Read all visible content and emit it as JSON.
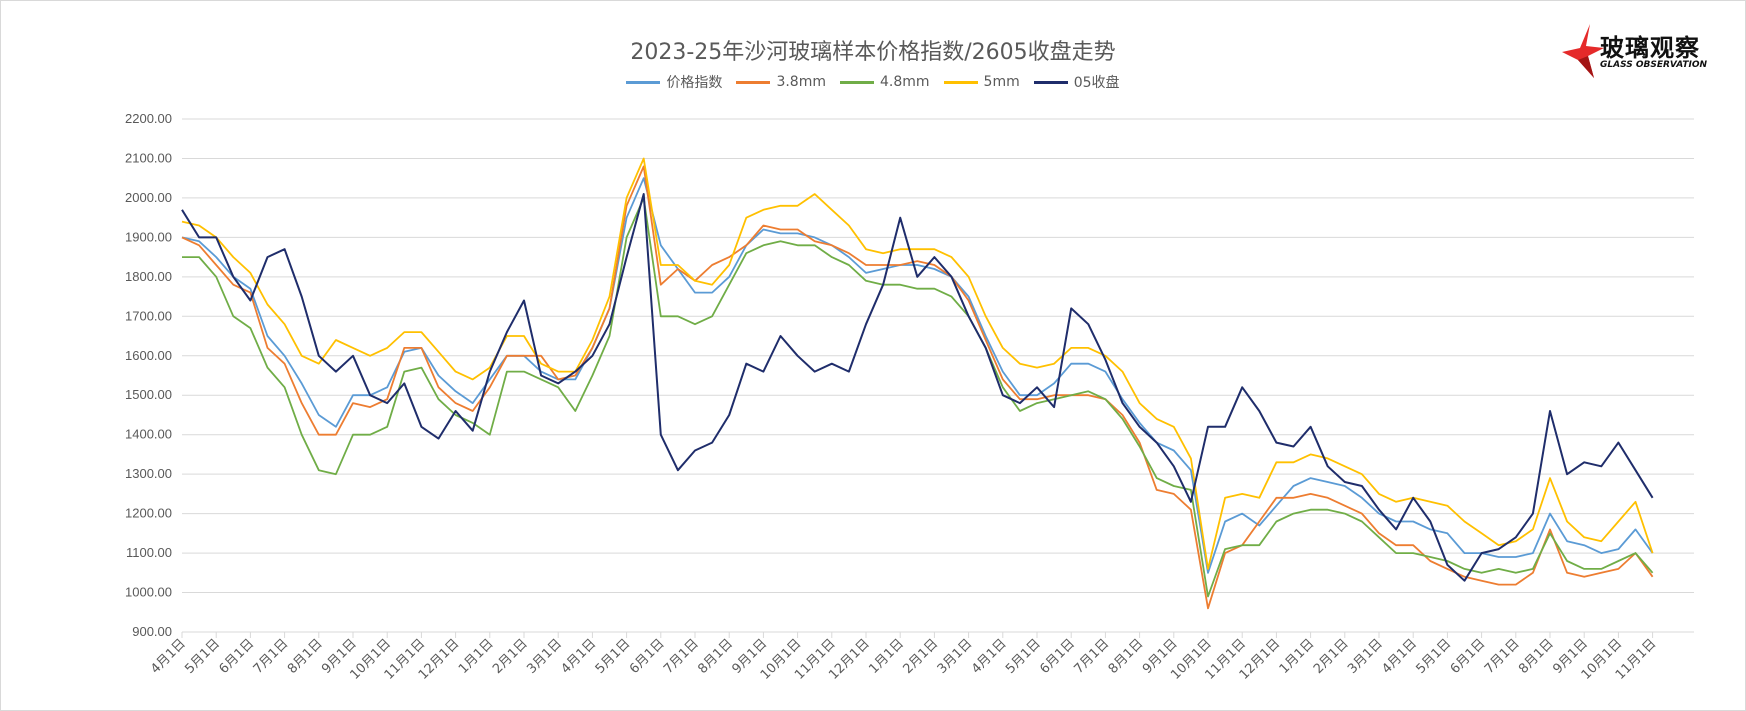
{
  "chart_data": {
    "type": "line",
    "title": "2023-25年沙河玻璃样本价格指数/2605收盘走势",
    "xlabel": "",
    "ylabel": "",
    "ylim": [
      900,
      2200
    ],
    "yticks": [
      "2200.00",
      "2100.00",
      "2000.00",
      "1900.00",
      "1800.00",
      "1700.00",
      "1600.00",
      "1500.00",
      "1400.00",
      "1300.00",
      "1200.00",
      "1100.00",
      "1000.00",
      "900.00"
    ],
    "xtick_labels": [
      "4月1日",
      "5月1日",
      "6月1日",
      "7月1日",
      "8月1日",
      "9月1日",
      "10月1日",
      "11月1日",
      "12月1日",
      "1月1日",
      "2月1日",
      "3月1日",
      "4月1日",
      "5月1日",
      "6月1日",
      "7月1日",
      "8月1日",
      "9月1日",
      "10月1日",
      "11月1日",
      "12月1日",
      "1月1日",
      "2月1日",
      "3月1日",
      "4月1日",
      "5月1日",
      "6月1日",
      "7月1日",
      "8月1日",
      "9月1日",
      "10月1日",
      "11月1日",
      "12月1日",
      "1月1日",
      "2月1日",
      "3月1日",
      "4月1日",
      "5月1日",
      "6月1日",
      "7月1日",
      "8月1日",
      "9月1日",
      "10月1日",
      "11月1日"
    ],
    "grid": true,
    "legend_position": "top",
    "x": [
      "2022-04-01",
      "2022-04-16",
      "2022-05-01",
      "2022-05-16",
      "2022-06-01",
      "2022-06-16",
      "2022-07-01",
      "2022-07-16",
      "2022-08-01",
      "2022-08-16",
      "2022-09-01",
      "2022-09-16",
      "2022-10-01",
      "2022-10-16",
      "2022-11-01",
      "2022-11-16",
      "2022-12-01",
      "2022-12-16",
      "2023-01-01",
      "2023-01-16",
      "2023-02-01",
      "2023-02-16",
      "2023-03-01",
      "2023-03-16",
      "2023-04-01",
      "2023-04-16",
      "2023-05-01",
      "2023-05-16",
      "2023-06-01",
      "2023-06-16",
      "2023-07-01",
      "2023-07-16",
      "2023-08-01",
      "2023-08-16",
      "2023-09-01",
      "2023-09-16",
      "2023-10-01",
      "2023-10-16",
      "2023-11-01",
      "2023-11-16",
      "2023-12-01",
      "2023-12-16",
      "2024-01-01",
      "2024-01-16",
      "2024-02-01",
      "2024-02-16",
      "2024-03-01",
      "2024-03-16",
      "2024-04-01",
      "2024-04-16",
      "2024-05-01",
      "2024-05-16",
      "2024-06-01",
      "2024-06-16",
      "2024-07-01",
      "2024-07-16",
      "2024-08-01",
      "2024-08-16",
      "2024-09-01",
      "2024-09-16",
      "2024-10-01",
      "2024-10-16",
      "2024-11-01",
      "2024-11-16",
      "2024-12-01",
      "2024-12-16",
      "2025-01-01",
      "2025-01-16",
      "2025-02-01",
      "2025-02-16",
      "2025-03-01",
      "2025-03-16",
      "2025-04-01",
      "2025-04-16",
      "2025-05-01",
      "2025-05-16",
      "2025-06-01",
      "2025-06-16",
      "2025-07-01",
      "2025-07-16",
      "2025-08-01",
      "2025-08-16",
      "2025-09-01",
      "2025-09-16",
      "2025-10-01",
      "2025-10-16",
      "2025-11-01"
    ],
    "series": [
      {
        "name": "价格指数",
        "color": "#5b9bd5",
        "values": [
          1900,
          1890,
          1850,
          1800,
          1770,
          1650,
          1600,
          1530,
          1450,
          1420,
          1500,
          1500,
          1520,
          1610,
          1620,
          1550,
          1510,
          1480,
          1540,
          1600,
          1600,
          1560,
          1540,
          1540,
          1620,
          1720,
          1950,
          2050,
          1880,
          1820,
          1760,
          1760,
          1800,
          1880,
          1920,
          1910,
          1910,
          1900,
          1880,
          1850,
          1810,
          1820,
          1830,
          1830,
          1820,
          1800,
          1750,
          1650,
          1560,
          1500,
          1500,
          1530,
          1580,
          1580,
          1560,
          1490,
          1430,
          1380,
          1360,
          1310,
          1050,
          1180,
          1200,
          1170,
          1220,
          1270,
          1290,
          1280,
          1270,
          1240,
          1200,
          1180,
          1180,
          1160,
          1150,
          1100,
          1100,
          1090,
          1090,
          1100,
          1200,
          1130,
          1120,
          1100,
          1110,
          1160,
          1100
        ]
      },
      {
        "name": "3.8mm",
        "color": "#ed7d31",
        "values": [
          1900,
          1880,
          1830,
          1780,
          1760,
          1620,
          1580,
          1480,
          1400,
          1400,
          1480,
          1470,
          1490,
          1620,
          1620,
          1520,
          1480,
          1460,
          1520,
          1600,
          1600,
          1600,
          1540,
          1550,
          1620,
          1720,
          1980,
          2080,
          1780,
          1820,
          1790,
          1830,
          1850,
          1880,
          1930,
          1920,
          1920,
          1890,
          1880,
          1860,
          1830,
          1830,
          1830,
          1840,
          1830,
          1800,
          1740,
          1640,
          1540,
          1490,
          1490,
          1500,
          1500,
          1500,
          1490,
          1450,
          1380,
          1260,
          1250,
          1210,
          960,
          1100,
          1120,
          1180,
          1240,
          1240,
          1250,
          1240,
          1220,
          1200,
          1150,
          1120,
          1120,
          1080,
          1060,
          1040,
          1030,
          1020,
          1020,
          1050,
          1160,
          1050,
          1040,
          1050,
          1060,
          1100,
          1040
        ]
      },
      {
        "name": "4.8mm",
        "color": "#70ad47",
        "values": [
          1850,
          1850,
          1800,
          1700,
          1670,
          1570,
          1520,
          1400,
          1310,
          1300,
          1400,
          1400,
          1420,
          1560,
          1570,
          1490,
          1450,
          1430,
          1400,
          1560,
          1560,
          1540,
          1520,
          1460,
          1550,
          1650,
          1900,
          2000,
          1700,
          1700,
          1680,
          1700,
          1780,
          1860,
          1880,
          1890,
          1880,
          1880,
          1850,
          1830,
          1790,
          1780,
          1780,
          1770,
          1770,
          1750,
          1700,
          1620,
          1520,
          1460,
          1480,
          1490,
          1500,
          1510,
          1490,
          1440,
          1370,
          1290,
          1270,
          1260,
          990,
          1110,
          1120,
          1120,
          1180,
          1200,
          1210,
          1210,
          1200,
          1180,
          1140,
          1100,
          1100,
          1090,
          1080,
          1060,
          1050,
          1060,
          1050,
          1060,
          1150,
          1080,
          1060,
          1060,
          1080,
          1100,
          1050
        ]
      },
      {
        "name": "5mm",
        "color": "#ffc000",
        "values": [
          1940,
          1930,
          1900,
          1850,
          1810,
          1730,
          1680,
          1600,
          1580,
          1640,
          1620,
          1600,
          1620,
          1660,
          1660,
          1610,
          1560,
          1540,
          1570,
          1650,
          1650,
          1580,
          1560,
          1560,
          1640,
          1750,
          2000,
          2100,
          1830,
          1830,
          1790,
          1780,
          1830,
          1950,
          1970,
          1980,
          1980,
          2010,
          1970,
          1930,
          1870,
          1860,
          1870,
          1870,
          1870,
          1850,
          1800,
          1700,
          1620,
          1580,
          1570,
          1580,
          1620,
          1620,
          1600,
          1560,
          1480,
          1440,
          1420,
          1340,
          1060,
          1240,
          1250,
          1240,
          1330,
          1330,
          1350,
          1340,
          1320,
          1300,
          1250,
          1230,
          1240,
          1230,
          1220,
          1180,
          1150,
          1120,
          1130,
          1160,
          1290,
          1180,
          1140,
          1130,
          1180,
          1230,
          1100
        ]
      },
      {
        "name": "05收盘",
        "color": "#1f2d6b",
        "values": [
          1970,
          1900,
          1900,
          1800,
          1740,
          1850,
          1870,
          1750,
          1600,
          1560,
          1600,
          1500,
          1480,
          1530,
          1420,
          1390,
          1460,
          1410,
          1560,
          1660,
          1740,
          1550,
          1530,
          1560,
          1600,
          1680,
          1850,
          2010,
          1400,
          1310,
          1360,
          1380,
          1450,
          1580,
          1560,
          1650,
          1600,
          1560,
          1580,
          1560,
          1680,
          1780,
          1950,
          1800,
          1850,
          1800,
          1700,
          1620,
          1500,
          1480,
          1520,
          1470,
          1720,
          1680,
          1590,
          1480,
          1420,
          1380,
          1320,
          1230,
          1420,
          1420,
          1520,
          1460,
          1380,
          1370,
          1420,
          1320,
          1280,
          1270,
          1210,
          1160,
          1240,
          1180,
          1070,
          1030,
          1100,
          1110,
          1140,
          1200,
          1460,
          1300,
          1330,
          1320,
          1380,
          1310,
          1240
        ]
      }
    ]
  },
  "logo": {
    "cn": "玻璃观察",
    "en": "GLASS OBSERVATION"
  }
}
